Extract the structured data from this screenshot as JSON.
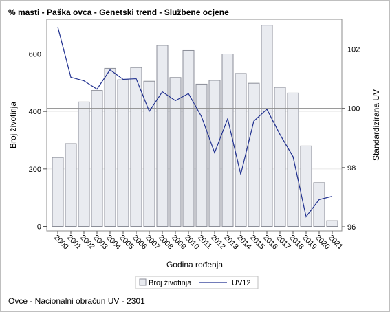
{
  "chart_data": {
    "type": "bar",
    "title": "% masti - Paška ovca - Genetski trend - Službene ocjene",
    "xlabel": "Godina rođenja",
    "ylabel": "Broj životinja",
    "y2label": "Standardizirana UV",
    "ylim": [
      0,
      720
    ],
    "y2lim": [
      95.97,
      102.9
    ],
    "yticks": [
      "0",
      "200",
      "400",
      "600"
    ],
    "y2ticks": [
      "96",
      "98",
      "100",
      "102"
    ],
    "reference_line_y2": 100,
    "categories": [
      "2000",
      "2001",
      "2002",
      "2003",
      "2004",
      "2005",
      "2006",
      "2007",
      "2008",
      "2009",
      "2010",
      "2011",
      "2012",
      "2013",
      "2014",
      "2015",
      "2016",
      "2017",
      "2018",
      "2019",
      "2020",
      "2021"
    ],
    "series": [
      {
        "name": "Broj životinja",
        "type": "bar",
        "axis": "left",
        "values": [
          240,
          288,
          433,
          473,
          550,
          510,
          553,
          505,
          630,
          518,
          612,
          495,
          508,
          600,
          532,
          498,
          700,
          484,
          464,
          280,
          152,
          20
        ]
      },
      {
        "name": "UV12",
        "type": "line",
        "axis": "right",
        "values": [
          102.75,
          101.05,
          100.93,
          100.65,
          101.3,
          100.98,
          101.0,
          99.9,
          100.56,
          100.26,
          100.5,
          99.72,
          98.5,
          99.65,
          97.77,
          99.57,
          99.97,
          99.12,
          98.37,
          96.34,
          96.92,
          97.03
        ]
      }
    ],
    "legend": {
      "position": "bottom",
      "entries": [
        "Broj životinja",
        "UV12"
      ]
    },
    "grid": true,
    "colors": {
      "bar_fill": "#e9ebf0",
      "bar_stroke": "#8b8e98",
      "line": "#1f2f8f",
      "grid": "#e6e6e6",
      "refline": "#8c8c8c"
    }
  },
  "footnote": "Ovce - Nacionalni obračun UV - 2301"
}
